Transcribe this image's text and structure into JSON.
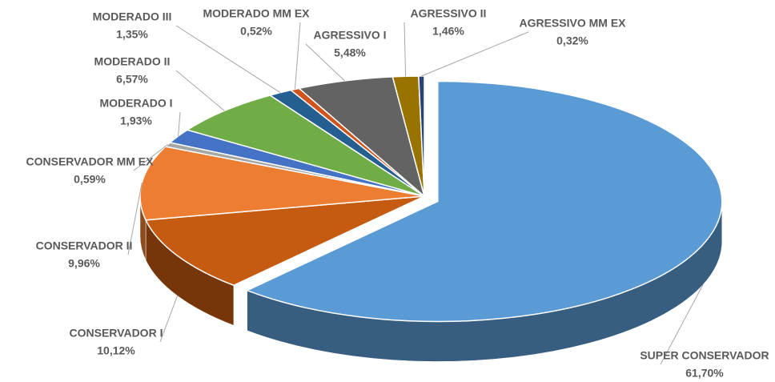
{
  "chart_data": {
    "type": "pie",
    "categories": [
      "SUPER CONSERVADOR",
      "CONSERVADOR I",
      "CONSERVADOR II",
      "CONSERVADOR MM EX",
      "MODERADO I",
      "MODERADO II",
      "MODERADO III",
      "MODERADO  MM EX",
      "AGRESSIVO I",
      "AGRESSIVO II",
      "AGRESSIVO MM EX"
    ],
    "values": [
      61.7,
      10.12,
      9.96,
      0.59,
      1.93,
      6.57,
      1.35,
      0.52,
      5.48,
      1.46,
      0.32
    ],
    "value_labels": [
      "61,70%",
      "10,12%",
      "9,96%",
      "0,59%",
      "1,93%",
      "6,57%",
      "1,35%",
      "0,52%",
      "5,48%",
      "1,46%",
      "0,32%"
    ],
    "colors": [
      "#5b9bd5",
      "#c55a11",
      "#ed7d31",
      "#a5a5a5",
      "#4472c4",
      "#70ad47",
      "#255e91",
      "#d0531b",
      "#636363",
      "#997300",
      "#264478"
    ]
  }
}
